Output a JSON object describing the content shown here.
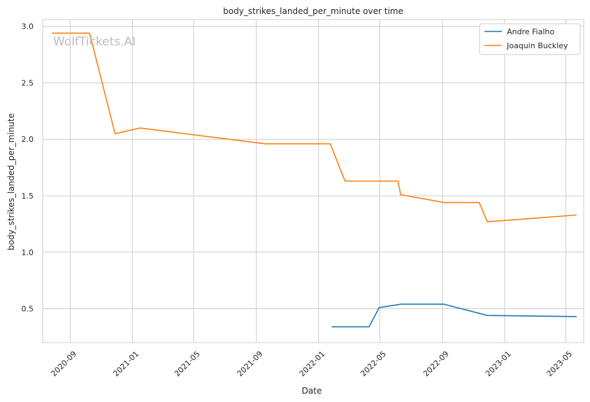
{
  "chart_data": {
    "type": "line",
    "title": "body_strikes_landed_per_minute over time",
    "xlabel": "Date",
    "ylabel": "body_strikes_landed_per_minute",
    "watermark": "WolfTickets.AI",
    "x_ticks": [
      "2020-09",
      "2021-01",
      "2021-05",
      "2021-09",
      "2022-01",
      "2022-05",
      "2022-09",
      "2023-01",
      "2023-05"
    ],
    "y_ticks": [
      "0.5",
      "1.0",
      "1.5",
      "2.0",
      "2.5",
      "3.0"
    ],
    "xlim": [
      "2020-07-09",
      "2023-06-05"
    ],
    "ylim": [
      0.2,
      3.06
    ],
    "grid": true,
    "legend_position": "top-right",
    "series": [
      {
        "name": "Andre Fialho",
        "color": "#1f77b4",
        "points": [
          [
            "2022-01-27",
            0.34
          ],
          [
            "2022-04-10",
            0.34
          ],
          [
            "2022-04-30",
            0.51
          ],
          [
            "2022-06-12",
            0.54
          ],
          [
            "2022-09-04",
            0.54
          ],
          [
            "2022-11-28",
            0.44
          ],
          [
            "2023-05-22",
            0.43
          ]
        ]
      },
      {
        "name": "Joaquin Buckley",
        "color": "#ff7f0e",
        "points": [
          [
            "2020-07-27",
            2.94
          ],
          [
            "2020-10-09",
            2.94
          ],
          [
            "2020-11-28",
            2.05
          ],
          [
            "2021-01-16",
            2.1
          ],
          [
            "2021-09-18",
            1.96
          ],
          [
            "2022-01-24",
            1.96
          ],
          [
            "2022-02-22",
            1.63
          ],
          [
            "2022-06-06",
            1.63
          ],
          [
            "2022-06-11",
            1.51
          ],
          [
            "2022-09-04",
            1.44
          ],
          [
            "2022-11-12",
            1.44
          ],
          [
            "2022-11-28",
            1.27
          ],
          [
            "2023-05-22",
            1.33
          ]
        ]
      }
    ]
  }
}
